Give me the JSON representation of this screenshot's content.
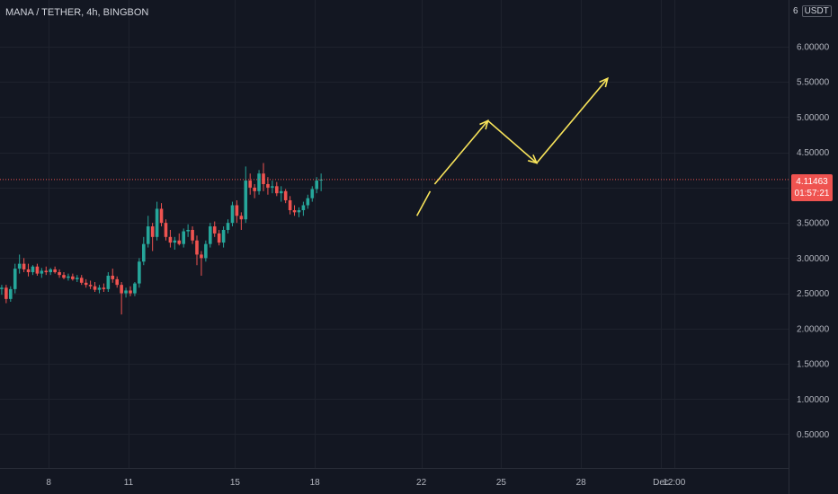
{
  "header": {
    "title": "MANA / TETHER, 4h, BINGBON"
  },
  "price_scale": {
    "top_label": "6",
    "currency": "USDT",
    "labels": [
      "6.00000",
      "5.50000",
      "5.00000",
      "4.50000",
      "3.50000",
      "3.00000",
      "2.50000",
      "2.00000",
      "1.50000",
      "1.00000",
      "0.50000"
    ]
  },
  "current_price": {
    "value": "4.11463",
    "countdown": "01:57:21"
  },
  "time_axis": {
    "labels": [
      "8",
      "11",
      "15",
      "18",
      "22",
      "25",
      "28",
      "Dec",
      "12:00"
    ]
  },
  "colors": {
    "background": "#131722",
    "up": "#26a69a",
    "down": "#ef5350",
    "annotation": "#f7e35a",
    "grid": "#1e222d",
    "price_line": "#ef5350"
  },
  "chart_data": {
    "type": "candlestick",
    "title": "MANA / TETHER, 4h, BINGBON",
    "ylim": [
      0.0,
      6.4
    ],
    "x_range": [
      "Nov 6 00:00",
      "Dec 1 18:00"
    ],
    "candle_interval": "4h",
    "first_candle": "Nov 6 00:00",
    "current_price": 4.11463,
    "candles": [
      [
        2.6,
        2.66,
        2.52,
        2.56
      ],
      [
        2.56,
        2.62,
        2.48,
        2.58
      ],
      [
        2.58,
        2.62,
        2.36,
        2.42
      ],
      [
        2.42,
        2.6,
        2.38,
        2.56
      ],
      [
        2.56,
        2.92,
        2.5,
        2.85
      ],
      [
        2.85,
        3.05,
        2.78,
        2.92
      ],
      [
        2.92,
        3.0,
        2.8,
        2.84
      ],
      [
        2.84,
        2.92,
        2.74,
        2.8
      ],
      [
        2.8,
        2.9,
        2.76,
        2.88
      ],
      [
        2.88,
        2.92,
        2.75,
        2.78
      ],
      [
        2.78,
        2.86,
        2.72,
        2.82
      ],
      [
        2.82,
        2.88,
        2.76,
        2.8
      ],
      [
        2.8,
        2.86,
        2.76,
        2.84
      ],
      [
        2.84,
        2.88,
        2.78,
        2.8
      ],
      [
        2.8,
        2.84,
        2.72,
        2.76
      ],
      [
        2.76,
        2.8,
        2.7,
        2.72
      ],
      [
        2.72,
        2.78,
        2.68,
        2.74
      ],
      [
        2.74,
        2.78,
        2.68,
        2.7
      ],
      [
        2.7,
        2.76,
        2.66,
        2.72
      ],
      [
        2.72,
        2.76,
        2.62,
        2.65
      ],
      [
        2.65,
        2.7,
        2.58,
        2.62
      ],
      [
        2.62,
        2.68,
        2.56,
        2.6
      ],
      [
        2.6,
        2.66,
        2.52,
        2.55
      ],
      [
        2.55,
        2.62,
        2.5,
        2.58
      ],
      [
        2.58,
        2.64,
        2.52,
        2.56
      ],
      [
        2.56,
        2.8,
        2.52,
        2.75
      ],
      [
        2.75,
        2.85,
        2.65,
        2.7
      ],
      [
        2.7,
        2.74,
        2.58,
        2.62
      ],
      [
        2.62,
        2.66,
        2.2,
        2.5
      ],
      [
        2.5,
        2.58,
        2.44,
        2.54
      ],
      [
        2.54,
        2.6,
        2.46,
        2.5
      ],
      [
        2.5,
        2.66,
        2.46,
        2.64
      ],
      [
        2.64,
        3.0,
        2.58,
        2.95
      ],
      [
        2.95,
        3.3,
        2.9,
        3.2
      ],
      [
        3.2,
        3.6,
        3.15,
        3.45
      ],
      [
        3.45,
        3.5,
        3.1,
        3.3
      ],
      [
        3.3,
        3.8,
        3.25,
        3.7
      ],
      [
        3.7,
        3.78,
        3.45,
        3.5
      ],
      [
        3.5,
        3.55,
        3.25,
        3.3
      ],
      [
        3.3,
        3.4,
        3.15,
        3.22
      ],
      [
        3.22,
        3.3,
        3.12,
        3.25
      ],
      [
        3.25,
        3.35,
        3.18,
        3.2
      ],
      [
        3.2,
        3.42,
        3.15,
        3.38
      ],
      [
        3.38,
        3.48,
        3.3,
        3.4
      ],
      [
        3.4,
        3.45,
        3.2,
        3.25
      ],
      [
        3.25,
        3.32,
        2.9,
        3.05
      ],
      [
        3.05,
        3.1,
        2.75,
        3.0
      ],
      [
        3.0,
        3.25,
        2.95,
        3.2
      ],
      [
        3.2,
        3.5,
        3.15,
        3.45
      ],
      [
        3.45,
        3.52,
        3.3,
        3.35
      ],
      [
        3.35,
        3.4,
        3.18,
        3.22
      ],
      [
        3.22,
        3.45,
        3.15,
        3.4
      ],
      [
        3.4,
        3.55,
        3.35,
        3.5
      ],
      [
        3.5,
        3.8,
        3.45,
        3.75
      ],
      [
        3.75,
        3.82,
        3.5,
        3.6
      ],
      [
        3.6,
        3.65,
        3.4,
        3.55
      ],
      [
        3.55,
        4.3,
        3.5,
        4.1
      ],
      [
        4.1,
        4.2,
        3.9,
        4.0
      ],
      [
        4.0,
        4.05,
        3.85,
        3.95
      ],
      [
        3.95,
        4.25,
        3.9,
        4.2
      ],
      [
        4.2,
        4.35,
        3.95,
        4.05
      ],
      [
        4.05,
        4.15,
        3.9,
        4.0
      ],
      [
        4.0,
        4.1,
        3.92,
        4.02
      ],
      [
        4.02,
        4.08,
        3.88,
        3.92
      ],
      [
        3.92,
        4.02,
        3.8,
        3.95
      ],
      [
        3.95,
        3.98,
        3.78,
        3.82
      ],
      [
        3.82,
        3.88,
        3.62,
        3.68
      ],
      [
        3.68,
        3.75,
        3.6,
        3.65
      ],
      [
        3.65,
        3.72,
        3.58,
        3.68
      ],
      [
        3.68,
        3.8,
        3.6,
        3.75
      ],
      [
        3.75,
        3.9,
        3.7,
        3.85
      ],
      [
        3.85,
        4.02,
        3.8,
        3.98
      ],
      [
        3.98,
        4.15,
        3.92,
        4.1
      ],
      [
        4.1,
        4.2,
        3.95,
        4.11463
      ]
    ],
    "annotation": {
      "color": "#f7e35a",
      "segments": [
        [
          [
            "Nov 21 20:00",
            3.6
          ],
          [
            "Nov 22 08:00",
            3.95
          ]
        ],
        [
          [
            "Nov 22 12:00",
            4.05
          ],
          [
            "Nov 24 12:00",
            4.95
          ],
          [
            "Nov 26 08:00",
            4.35
          ],
          [
            "Nov 29 00:00",
            5.55
          ]
        ]
      ]
    }
  }
}
